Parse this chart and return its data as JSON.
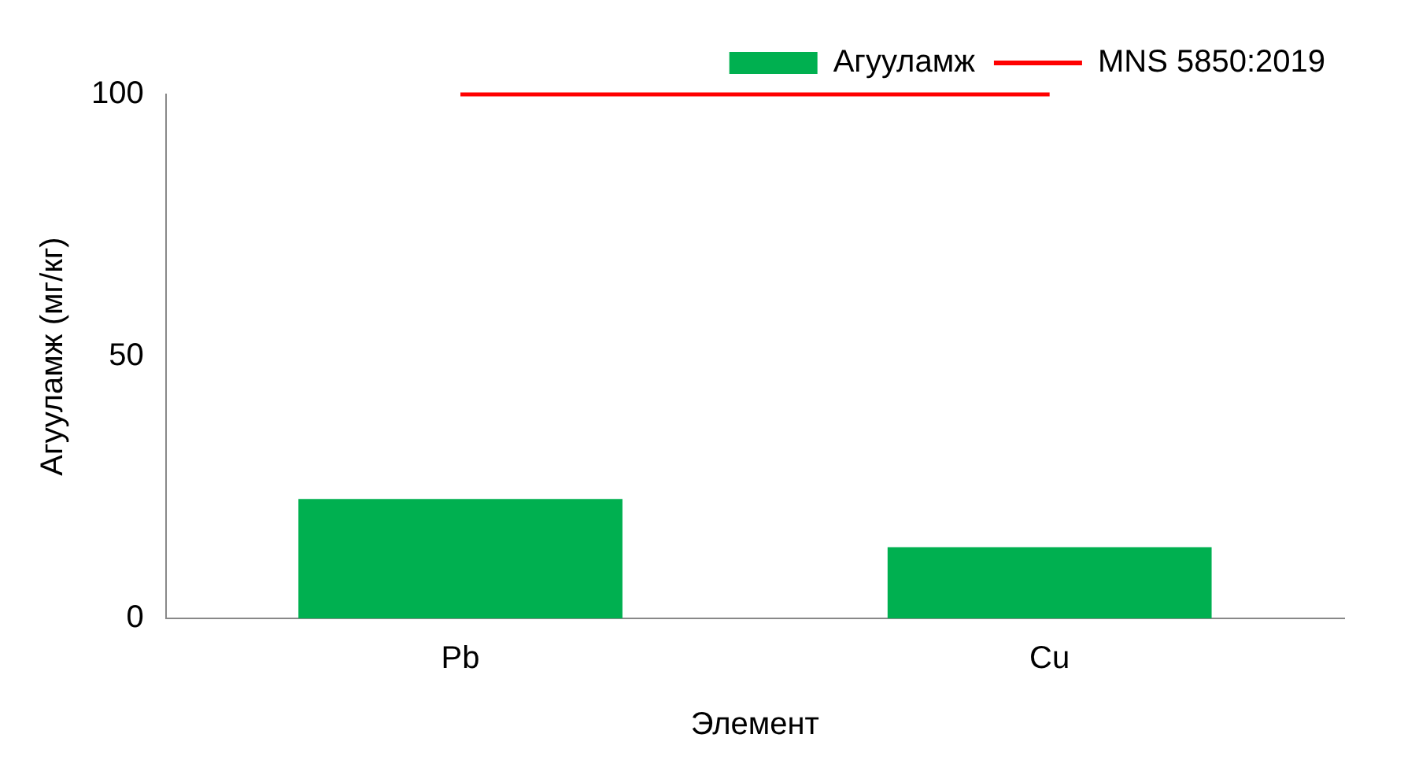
{
  "chart_data": {
    "type": "bar",
    "xlabel": "Элемент",
    "ylabel": "Агууламж (мг/кг)",
    "categories": [
      "Pb",
      "Cu"
    ],
    "series": [
      {
        "name": "Агууламж",
        "color": "#00b050",
        "values": [
          22.8,
          13.6
        ]
      },
      {
        "name": "MNS 5850:2019",
        "type": "line",
        "color": "#ff0000",
        "values": [
          100,
          100
        ]
      }
    ],
    "ylim": [
      0,
      100
    ],
    "yticks": [
      0,
      50,
      100
    ],
    "grid": false,
    "legend": "top right",
    "marker": "none"
  }
}
